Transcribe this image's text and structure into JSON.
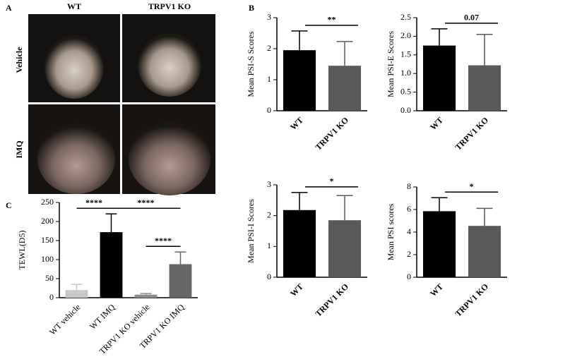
{
  "panel_labels": [
    "A",
    "B",
    "C"
  ],
  "panel_a": {
    "columns": [
      "WT",
      "TRPV1 KO"
    ],
    "rows": [
      "Vehicle",
      "IMQ"
    ]
  },
  "chart_data": [
    {
      "type": "bar",
      "ylabel": "Mean PSI-S Scores",
      "categories": [
        "WT",
        "TRPV1 KO"
      ],
      "values": [
        1.95,
        1.45
      ],
      "errors": [
        0.62,
        0.78
      ],
      "colors": [
        "#000000",
        "#595959"
      ],
      "ylim": [
        0,
        3
      ],
      "yticks": [
        0,
        1,
        2,
        3
      ],
      "annotations": [
        "**"
      ]
    },
    {
      "type": "bar",
      "ylabel": "Mean PSI-E Scores",
      "categories": [
        "WT",
        "TRPV1 KO"
      ],
      "values": [
        1.75,
        1.22
      ],
      "errors": [
        0.45,
        0.83
      ],
      "colors": [
        "#000000",
        "#595959"
      ],
      "ylim": [
        0,
        2.5
      ],
      "yticks": [
        {
          "value": 0,
          "label": "0.0"
        },
        0.5,
        {
          "value": 1,
          "label": "1.0"
        },
        1.5,
        {
          "value": 2,
          "label": "2.0"
        },
        2.5
      ],
      "annotations": [
        "0.07"
      ]
    },
    {
      "type": "bar",
      "ylabel": "Mean PSI-I Scores",
      "categories": [
        "WT",
        "TRPV1 KO"
      ],
      "values": [
        2.18,
        1.85
      ],
      "errors": [
        0.57,
        0.8
      ],
      "colors": [
        "#000000",
        "#595959"
      ],
      "ylim": [
        0,
        3
      ],
      "yticks": [
        0,
        1,
        2,
        3
      ],
      "annotations": [
        "*"
      ]
    },
    {
      "type": "bar",
      "ylabel": "Mean PSI scores",
      "categories": [
        "WT",
        "TRPV1 KO"
      ],
      "values": [
        5.85,
        4.55
      ],
      "errors": [
        1.2,
        1.55
      ],
      "colors": [
        "#000000",
        "#595959"
      ],
      "ylim": [
        0,
        8
      ],
      "yticks": [
        0,
        2,
        4,
        6,
        8
      ],
      "annotations": [
        "*"
      ]
    },
    {
      "type": "bar",
      "ylabel": "TEWL(D5)",
      "categories": [
        "WT vehicle",
        "WT IMQ",
        "TRPV1 KO vehicle",
        "TRPV1 KO IMQ"
      ],
      "values": [
        20,
        172,
        8,
        88
      ],
      "errors": [
        15,
        48,
        3,
        32
      ],
      "colors": [
        "#c8c8c8",
        "#000000",
        "#8c8c8c",
        "#666666"
      ],
      "ylim": [
        0,
        250
      ],
      "yticks": [
        0,
        50,
        100,
        150,
        200,
        250
      ],
      "annotations": [
        "****",
        "****",
        "****"
      ]
    }
  ]
}
